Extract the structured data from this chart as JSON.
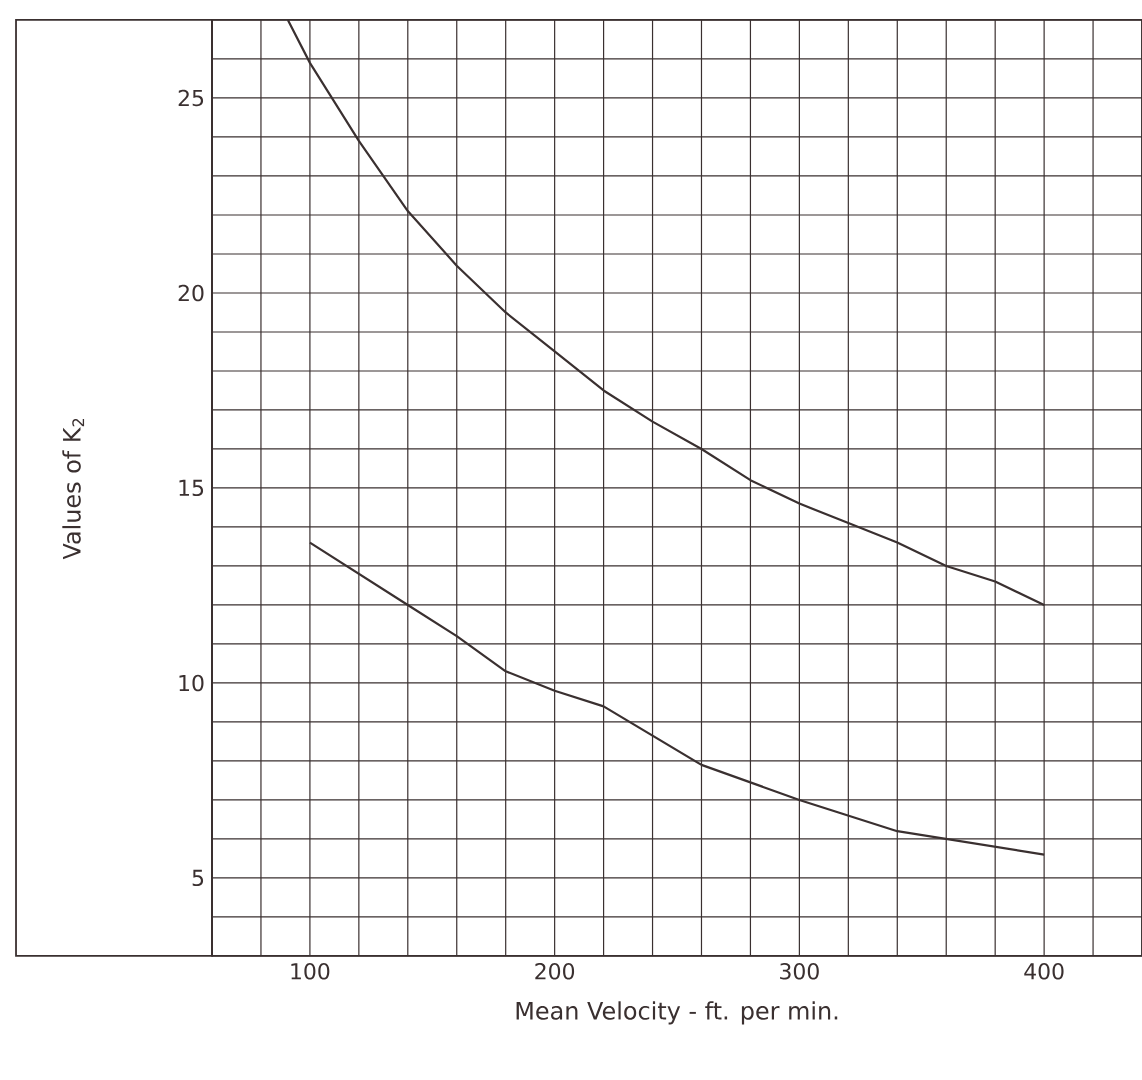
{
  "chart_data": {
    "type": "line",
    "xlabel": "Mean Velocity - ft. per min.",
    "ylabel": "Values of K$_{2}$",
    "xlim": [
      60,
      440
    ],
    "ylim": [
      3,
      27
    ],
    "xticks": [
      {
        "value": 60,
        "label": null
      },
      {
        "value": 80,
        "label": null
      },
      100,
      {
        "value": 120,
        "label": null
      },
      {
        "value": 140,
        "label": null
      },
      {
        "value": 160,
        "label": null
      },
      {
        "value": 180,
        "label": null
      },
      200,
      {
        "value": 220,
        "label": null
      },
      {
        "value": 240,
        "label": null
      },
      {
        "value": 260,
        "label": null
      },
      {
        "value": 280,
        "label": null
      },
      300,
      {
        "value": 320,
        "label": null
      },
      {
        "value": 340,
        "label": null
      },
      {
        "value": 360,
        "label": null
      },
      {
        "value": 380,
        "label": null
      },
      400,
      {
        "value": 420,
        "label": null
      },
      {
        "value": 440,
        "label": null
      }
    ],
    "yticks": [
      {
        "value": 3,
        "label": null
      },
      {
        "value": 4,
        "label": null
      },
      5,
      {
        "value": 6,
        "label": null
      },
      {
        "value": 7,
        "label": null
      },
      {
        "value": 8,
        "label": null
      },
      {
        "value": 9,
        "label": null
      },
      10,
      {
        "value": 11,
        "label": null
      },
      {
        "value": 12,
        "label": null
      },
      {
        "value": 13,
        "label": null
      },
      {
        "value": 14,
        "label": null
      },
      15,
      {
        "value": 16,
        "label": null
      },
      {
        "value": 17,
        "label": null
      },
      {
        "value": 18,
        "label": null
      },
      {
        "value": 19,
        "label": null
      },
      20,
      {
        "value": 21,
        "label": null
      },
      {
        "value": 22,
        "label": null
      },
      {
        "value": 23,
        "label": null
      },
      {
        "value": 24,
        "label": null
      },
      25,
      {
        "value": 26,
        "label": null
      },
      {
        "value": 27,
        "label": null
      }
    ],
    "grid": true,
    "series": [
      {
        "color": "#3a3030",
        "x": [
          91,
          100,
          120,
          140,
          160,
          180,
          200,
          220,
          240,
          260,
          280,
          300,
          320,
          340,
          360,
          380,
          400
        ],
        "values": [
          27,
          25.9,
          23.9,
          22.1,
          20.7,
          19.5,
          18.5,
          17.5,
          16.7,
          16.0,
          15.2,
          14.6,
          14.1,
          13.6,
          13.0,
          12.6,
          12.0
        ]
      },
      {
        "color": "#3a3030",
        "x": [
          100,
          140,
          160,
          180,
          200,
          220,
          260,
          300,
          340,
          400
        ],
        "values": [
          13.6,
          12.0,
          11.2,
          10.3,
          9.8,
          9.4,
          7.9,
          7.0,
          6.2,
          5.6
        ]
      }
    ]
  }
}
